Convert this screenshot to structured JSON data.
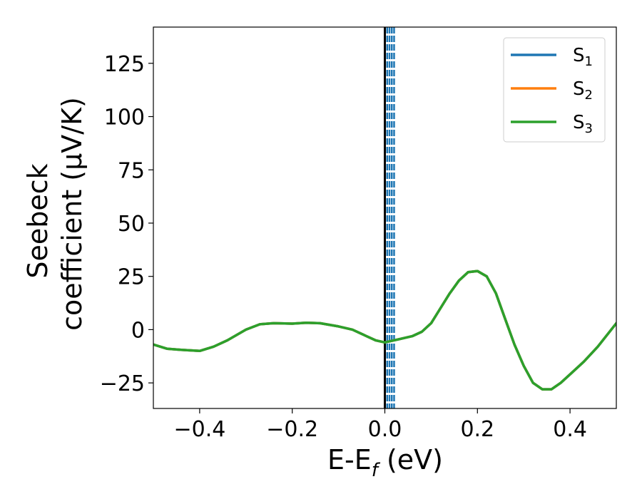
{
  "chart_data": {
    "type": "line",
    "xlabel_main": "E-E",
    "xlabel_sub": "f",
    "xlabel_unit": " (eV)",
    "ylabel_line1": "Seebeck",
    "ylabel_line2": "coefficient  (μV/K)",
    "xlim": [
      -0.5,
      0.5
    ],
    "ylim": [
      -37,
      142
    ],
    "xticks": [
      -0.4,
      -0.2,
      0.0,
      0.2,
      0.4
    ],
    "xtick_labels": [
      "−0.4",
      "−0.2",
      "0.0",
      "0.2",
      "0.4"
    ],
    "yticks": [
      -25,
      0,
      25,
      50,
      75,
      100,
      125
    ],
    "ytick_labels": [
      "−25",
      "0",
      "25",
      "50",
      "75",
      "100",
      "125"
    ],
    "grid": false,
    "legend_position": "top-right",
    "vertical_lines": [
      {
        "x": 0.0,
        "color": "#000000",
        "style": "solid"
      },
      {
        "x": 0.005,
        "color": "#1f77b4",
        "style": "dashed"
      },
      {
        "x": 0.01,
        "color": "#1f77b4",
        "style": "dashed"
      },
      {
        "x": 0.015,
        "color": "#1f77b4",
        "style": "dashed"
      },
      {
        "x": 0.02,
        "color": "#1f77b4",
        "style": "dashed"
      }
    ],
    "x": [
      -0.5,
      -0.47,
      -0.44,
      -0.4,
      -0.37,
      -0.34,
      -0.3,
      -0.27,
      -0.24,
      -0.2,
      -0.17,
      -0.14,
      -0.1,
      -0.07,
      -0.04,
      -0.02,
      0.0,
      0.03,
      0.06,
      0.08,
      0.1,
      0.12,
      0.14,
      0.16,
      0.18,
      0.2,
      0.22,
      0.24,
      0.26,
      0.28,
      0.3,
      0.32,
      0.34,
      0.36,
      0.38,
      0.4,
      0.43,
      0.46,
      0.5
    ],
    "series": [
      {
        "name": "S",
        "name_sub": "1",
        "color": "#1f77b4",
        "values": [
          -7,
          -9,
          -9.5,
          -10,
          -8,
          -5,
          0,
          2.5,
          3,
          2.8,
          3.2,
          3,
          1.5,
          0,
          -3,
          -5,
          -6,
          -4.5,
          -3,
          -1,
          3,
          10,
          17,
          23,
          27,
          27.5,
          25,
          17,
          5,
          -7,
          -17,
          -25,
          -28,
          -28,
          -25,
          -21,
          -15,
          -8,
          3
        ]
      },
      {
        "name": "S",
        "name_sub": "2",
        "color": "#ff7f0e",
        "values": [
          -7,
          -9,
          -9.5,
          -10,
          -8,
          -5,
          0,
          2.5,
          3,
          2.8,
          3.2,
          3,
          1.5,
          0,
          -3,
          -5,
          -6,
          -4.5,
          -3,
          -1,
          3,
          10,
          17,
          23,
          27,
          27.5,
          25,
          17,
          5,
          -7,
          -17,
          -25,
          -28,
          -28,
          -25,
          -21,
          -15,
          -8,
          3
        ]
      },
      {
        "name": "S",
        "name_sub": "3",
        "color": "#2ca02c",
        "values": [
          -7,
          -9,
          -9.5,
          -10,
          -8,
          -5,
          0,
          2.5,
          3,
          2.8,
          3.2,
          3,
          1.5,
          0,
          -3,
          -5,
          -6,
          -4.5,
          -3,
          -1,
          3,
          10,
          17,
          23,
          27,
          27.5,
          25,
          17,
          5,
          -7,
          -17,
          -25,
          -28,
          -28,
          -25,
          -21,
          -15,
          -8,
          3
        ]
      }
    ]
  }
}
